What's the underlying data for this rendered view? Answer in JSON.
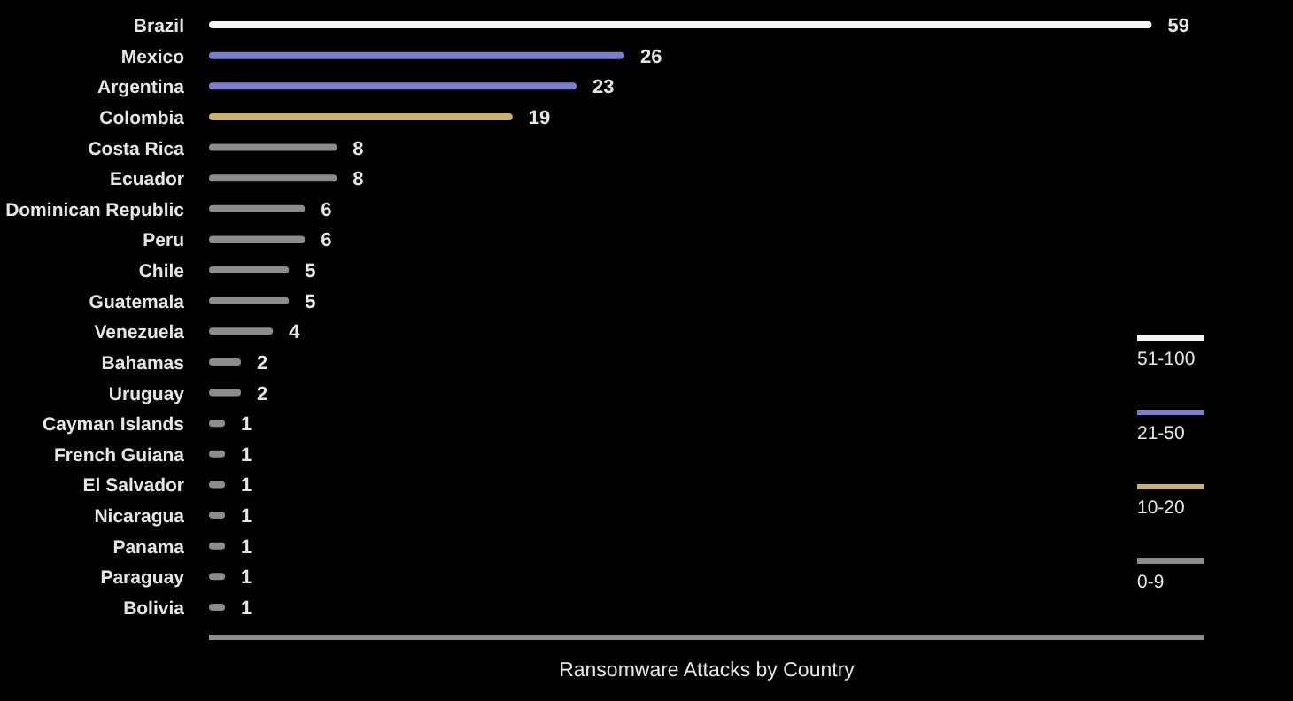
{
  "chart_data": {
    "type": "bar",
    "orientation": "horizontal",
    "xlabel": "Ransomware Attacks by Country",
    "categories": [
      "Brazil",
      "Mexico",
      "Argentina",
      "Colombia",
      "Costa Rica",
      "Ecuador",
      "Dominican Republic",
      "Peru",
      "Chile",
      "Guatemala",
      "Venezuela",
      "Bahamas",
      "Uruguay",
      "Cayman Islands",
      "French Guiana",
      "El Salvador",
      "Nicaragua",
      "Panama",
      "Paraguay",
      "Bolivia"
    ],
    "series": [
      {
        "name": "51-100",
        "color": "#f2f2f2",
        "values": [
          59,
          null,
          null,
          null,
          null,
          null,
          null,
          null,
          null,
          null,
          null,
          null,
          null,
          null,
          null,
          null,
          null,
          null,
          null,
          null
        ]
      },
      {
        "name": "21-50",
        "color": "#7b7fd0",
        "values": [
          null,
          26,
          23,
          null,
          null,
          null,
          null,
          null,
          null,
          null,
          null,
          null,
          null,
          null,
          null,
          null,
          null,
          null,
          null,
          null
        ]
      },
      {
        "name": "10-20",
        "color": "#c8b36c",
        "values": [
          null,
          null,
          null,
          19,
          null,
          null,
          null,
          null,
          null,
          null,
          null,
          null,
          null,
          null,
          null,
          null,
          null,
          null,
          null,
          null
        ]
      },
      {
        "name": "0-9",
        "color": "#8c8c8c",
        "values": [
          null,
          null,
          null,
          null,
          8,
          8,
          6,
          6,
          5,
          5,
          4,
          2,
          2,
          1,
          1,
          1,
          1,
          1,
          1,
          1
        ]
      }
    ],
    "xlim": [
      0,
      62.3
    ],
    "data_labels": true,
    "legend": "right"
  }
}
